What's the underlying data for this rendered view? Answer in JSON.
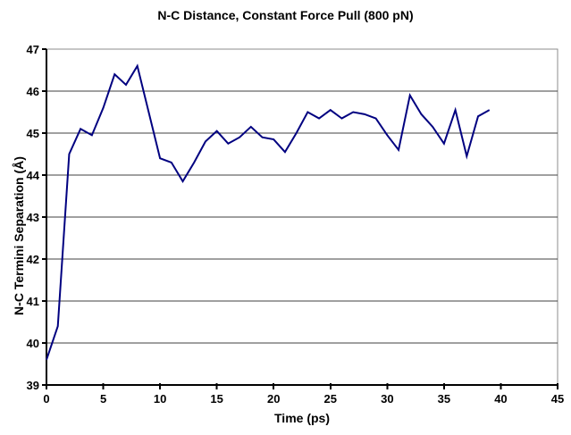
{
  "colors": {
    "line": "#000080",
    "gridline": "#404040",
    "axis": "#000000",
    "plot_border": "#8c8c8c",
    "background": "#ffffff",
    "text": "#000000"
  },
  "chart_data": {
    "type": "line",
    "title": "N-C Distance, Constant Force Pull (800 pN)",
    "xlabel": "Time (ps)",
    "ylabel": "N-C Termini Separation (Å)",
    "xlim": [
      0,
      45
    ],
    "ylim": [
      39,
      47
    ],
    "x_ticks": [
      0,
      5,
      10,
      15,
      20,
      25,
      30,
      35,
      40,
      45
    ],
    "y_ticks": [
      39,
      40,
      41,
      42,
      43,
      44,
      45,
      46,
      47
    ],
    "grid": "horizontal-only",
    "legend": "none",
    "series": [
      {
        "name": "N-C termini separation",
        "x": [
          0,
          1,
          2,
          3,
          4,
          5,
          6,
          7,
          8,
          9,
          10,
          11,
          12,
          13,
          14,
          15,
          16,
          17,
          18,
          19,
          20,
          21,
          22,
          23,
          24,
          25,
          26,
          27,
          28,
          29,
          30,
          31,
          32,
          33,
          34,
          35,
          36,
          37,
          38,
          39
        ],
        "y": [
          39.6,
          40.4,
          44.5,
          45.1,
          44.95,
          45.6,
          46.4,
          46.15,
          46.6,
          45.5,
          44.4,
          44.3,
          43.85,
          44.3,
          44.8,
          45.05,
          44.75,
          44.9,
          45.15,
          44.9,
          44.85,
          44.55,
          45.0,
          45.5,
          45.35,
          45.55,
          45.35,
          45.5,
          45.45,
          45.35,
          44.95,
          44.6,
          45.9,
          45.45,
          45.15,
          44.75,
          45.55,
          44.45,
          45.4,
          45.55
        ]
      }
    ]
  }
}
